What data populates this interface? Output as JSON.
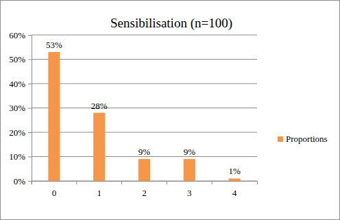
{
  "chart_data": {
    "type": "bar",
    "title": "Sensibilisation (n=100)",
    "categories": [
      "0",
      "1",
      "2",
      "3",
      "4"
    ],
    "series": [
      {
        "name": "Proportions",
        "color": "#f79646",
        "values": [
          53,
          28,
          9,
          9,
          1
        ],
        "value_labels": [
          "53%",
          "28%",
          "9%",
          "9%",
          "1%"
        ]
      }
    ],
    "ylim": [
      0,
      60
    ],
    "yticks": [
      {
        "value": 0,
        "label": "0%"
      },
      {
        "value": 10,
        "label": "10%"
      },
      {
        "value": 20,
        "label": "20%"
      },
      {
        "value": 30,
        "label": "30%"
      },
      {
        "value": 40,
        "label": "40%"
      },
      {
        "value": 50,
        "label": "50%"
      },
      {
        "value": 60,
        "label": "60%"
      }
    ],
    "grid": true,
    "legend": "right",
    "data_labels": true
  }
}
